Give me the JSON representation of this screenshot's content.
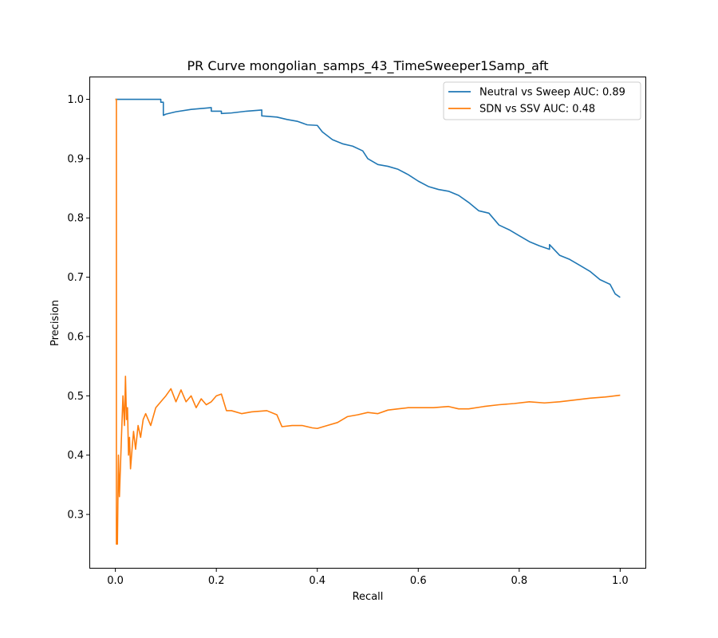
{
  "chart_data": {
    "type": "line",
    "title": "PR Curve mongolian_samps_43_TimeSweeper1Samp_aft",
    "xlabel": "Recall",
    "ylabel": "Precision",
    "xlim": [
      -0.05,
      1.05
    ],
    "ylim": [
      0.21,
      1.037
    ],
    "xticks": [
      0.0,
      0.2,
      0.4,
      0.6,
      0.8,
      1.0
    ],
    "xtick_labels": [
      "0.0",
      "0.2",
      "0.4",
      "0.6",
      "0.8",
      "1.0"
    ],
    "yticks": [
      0.3,
      0.4,
      0.5,
      0.6,
      0.7,
      0.8,
      0.9,
      1.0
    ],
    "ytick_labels": [
      "0.3",
      "0.4",
      "0.5",
      "0.6",
      "0.7",
      "0.8",
      "0.9",
      "1.0"
    ],
    "grid": false,
    "legend_position": "top-right",
    "series": [
      {
        "name": "Neutral vs Sweep AUC: 0.89",
        "color": "#1f77b4",
        "x": [
          0.0,
          0.09,
          0.09,
          0.095,
          0.095,
          0.1,
          0.12,
          0.15,
          0.19,
          0.19,
          0.21,
          0.21,
          0.23,
          0.26,
          0.29,
          0.29,
          0.32,
          0.34,
          0.36,
          0.38,
          0.4,
          0.41,
          0.43,
          0.45,
          0.47,
          0.49,
          0.5,
          0.52,
          0.54,
          0.56,
          0.58,
          0.6,
          0.62,
          0.64,
          0.66,
          0.68,
          0.7,
          0.72,
          0.74,
          0.76,
          0.78,
          0.8,
          0.82,
          0.84,
          0.86,
          0.86,
          0.88,
          0.9,
          0.92,
          0.94,
          0.96,
          0.98,
          0.99,
          1.0
        ],
        "y": [
          1.0,
          1.0,
          0.995,
          0.995,
          0.973,
          0.975,
          0.979,
          0.983,
          0.986,
          0.98,
          0.98,
          0.976,
          0.977,
          0.98,
          0.982,
          0.972,
          0.97,
          0.966,
          0.963,
          0.957,
          0.956,
          0.945,
          0.932,
          0.925,
          0.921,
          0.913,
          0.9,
          0.89,
          0.887,
          0.882,
          0.873,
          0.862,
          0.853,
          0.848,
          0.845,
          0.838,
          0.826,
          0.812,
          0.808,
          0.788,
          0.78,
          0.77,
          0.76,
          0.753,
          0.747,
          0.755,
          0.737,
          0.73,
          0.72,
          0.71,
          0.696,
          0.688,
          0.672,
          0.666
        ]
      },
      {
        "name": "SDN vs SSV AUC: 0.48",
        "color": "#ff7f0e",
        "x": [
          0.0,
          0.002,
          0.002,
          0.004,
          0.006,
          0.008,
          0.01,
          0.012,
          0.015,
          0.018,
          0.02,
          0.022,
          0.024,
          0.026,
          0.028,
          0.03,
          0.033,
          0.036,
          0.04,
          0.045,
          0.05,
          0.055,
          0.06,
          0.07,
          0.08,
          0.09,
          0.1,
          0.11,
          0.12,
          0.13,
          0.14,
          0.15,
          0.16,
          0.17,
          0.18,
          0.19,
          0.2,
          0.21,
          0.22,
          0.23,
          0.25,
          0.27,
          0.3,
          0.32,
          0.33,
          0.35,
          0.37,
          0.39,
          0.4,
          0.42,
          0.44,
          0.46,
          0.48,
          0.5,
          0.52,
          0.54,
          0.56,
          0.58,
          0.6,
          0.63,
          0.66,
          0.68,
          0.7,
          0.73,
          0.76,
          0.79,
          0.82,
          0.85,
          0.88,
          0.91,
          0.94,
          0.97,
          1.0
        ],
        "y": [
          1.0,
          1.0,
          0.25,
          0.25,
          0.4,
          0.33,
          0.38,
          0.43,
          0.5,
          0.45,
          0.533,
          0.46,
          0.48,
          0.4,
          0.43,
          0.377,
          0.41,
          0.44,
          0.41,
          0.45,
          0.43,
          0.46,
          0.47,
          0.45,
          0.48,
          0.49,
          0.5,
          0.512,
          0.49,
          0.51,
          0.49,
          0.5,
          0.48,
          0.495,
          0.485,
          0.49,
          0.5,
          0.503,
          0.475,
          0.475,
          0.47,
          0.473,
          0.475,
          0.468,
          0.448,
          0.45,
          0.45,
          0.446,
          0.445,
          0.45,
          0.455,
          0.465,
          0.468,
          0.472,
          0.47,
          0.476,
          0.478,
          0.48,
          0.48,
          0.48,
          0.482,
          0.478,
          0.478,
          0.482,
          0.485,
          0.487,
          0.49,
          0.488,
          0.49,
          0.493,
          0.496,
          0.498,
          0.501
        ]
      }
    ]
  }
}
